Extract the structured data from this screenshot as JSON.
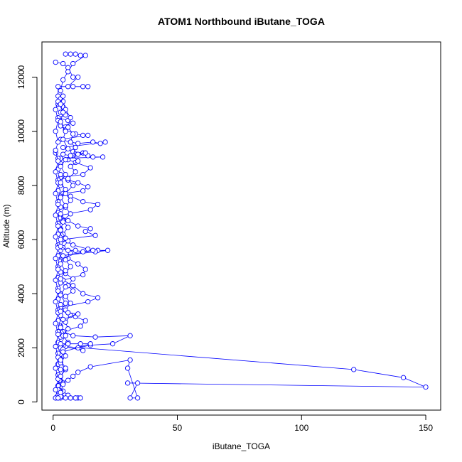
{
  "chart_data": {
    "type": "line",
    "title": "ATOM1 Northbound iButane_TOGA",
    "xlabel": "iButane_TOGA",
    "ylabel": "Altitude (m)",
    "xlim": [
      -4.5,
      156
    ],
    "ylim": [
      -300,
      13300
    ],
    "x_ticks": [
      "0",
      "50",
      "100",
      "150"
    ],
    "y_ticks": [
      "0",
      "2000",
      "4000",
      "6000",
      "8000",
      "10000",
      "12000"
    ],
    "line_color": "#0000ff",
    "marker": "open-circle",
    "grid": false,
    "series": [
      {
        "values": [
          [
            1,
            12550
          ],
          [
            4,
            12500
          ],
          [
            6,
            12350
          ],
          [
            8,
            12000
          ],
          [
            10,
            12000
          ],
          [
            6,
            11650
          ],
          [
            8,
            11650
          ],
          [
            12,
            11650
          ],
          [
            14,
            11650
          ],
          [
            2,
            11650
          ],
          [
            2,
            11300
          ],
          [
            3,
            11200
          ],
          [
            2,
            11000
          ],
          [
            4,
            10900
          ],
          [
            3,
            10700
          ],
          [
            5,
            10600
          ],
          [
            2,
            10500
          ],
          [
            6,
            10400
          ],
          [
            8,
            10300
          ],
          [
            3,
            10200
          ],
          [
            5,
            10050
          ],
          [
            9,
            9900
          ],
          [
            12,
            9850
          ],
          [
            14,
            9850
          ],
          [
            3,
            9700
          ],
          [
            7,
            9600
          ],
          [
            10,
            9550
          ],
          [
            16,
            9600
          ],
          [
            19,
            9550
          ],
          [
            21,
            9600
          ],
          [
            4,
            9400
          ],
          [
            8,
            9250
          ],
          [
            12,
            9200
          ],
          [
            14,
            9100
          ],
          [
            16,
            9050
          ],
          [
            20,
            9050
          ],
          [
            3,
            9000
          ],
          [
            6,
            8950
          ],
          [
            9,
            8850
          ],
          [
            15,
            8650
          ],
          [
            12,
            8400
          ],
          [
            3,
            8300
          ],
          [
            6,
            8200
          ],
          [
            10,
            8100
          ],
          [
            14,
            7950
          ],
          [
            12,
            7800
          ],
          [
            4,
            7700
          ],
          [
            7,
            7600
          ],
          [
            12,
            7400
          ],
          [
            18,
            7300
          ],
          [
            15,
            7100
          ],
          [
            3,
            6900
          ],
          [
            6,
            6700
          ],
          [
            10,
            6500
          ],
          [
            15,
            6400
          ],
          [
            13,
            6300
          ],
          [
            17,
            6150
          ],
          [
            4,
            6000
          ],
          [
            8,
            5800
          ],
          [
            14,
            5650
          ],
          [
            18,
            5600
          ],
          [
            22,
            5600
          ],
          [
            17,
            5550
          ],
          [
            3,
            5400
          ],
          [
            6,
            5300
          ],
          [
            10,
            5100
          ],
          [
            13,
            4900
          ],
          [
            12,
            4700
          ],
          [
            4,
            4500
          ],
          [
            8,
            4300
          ],
          [
            12,
            4000
          ],
          [
            18,
            3850
          ],
          [
            14,
            3700
          ],
          [
            3,
            3500
          ],
          [
            6,
            3300
          ],
          [
            9,
            3150
          ],
          [
            13,
            3000
          ],
          [
            11,
            2800
          ],
          [
            4,
            2600
          ],
          [
            8,
            2450
          ],
          [
            17,
            2400
          ],
          [
            31,
            2450
          ],
          [
            24,
            2150
          ],
          [
            15,
            2100
          ],
          [
            10,
            2000
          ],
          [
            12,
            1900
          ],
          [
            2,
            2100
          ],
          [
            5,
            2050
          ],
          [
            121,
            1200
          ],
          [
            141,
            900
          ],
          [
            150,
            550
          ],
          [
            30,
            700
          ],
          [
            34,
            700
          ],
          [
            31,
            150
          ],
          [
            34,
            150
          ],
          [
            30,
            1250
          ],
          [
            31,
            1550
          ],
          [
            15,
            1300
          ],
          [
            10,
            1100
          ],
          [
            8,
            950
          ],
          [
            6,
            800
          ],
          [
            3,
            750
          ],
          [
            2,
            600
          ],
          [
            4,
            400
          ],
          [
            6,
            250
          ],
          [
            9,
            150
          ],
          [
            10,
            150
          ],
          [
            7,
            150
          ],
          [
            3,
            150
          ],
          [
            2,
            150
          ],
          [
            1,
            150
          ]
        ]
      },
      {
        "values": [
          [
            1,
            9200
          ],
          [
            2,
            9000
          ],
          [
            3,
            8800
          ],
          [
            2,
            8600
          ],
          [
            3,
            8400
          ],
          [
            2,
            8200
          ],
          [
            3,
            8000
          ],
          [
            2,
            7800
          ],
          [
            3,
            7600
          ],
          [
            2,
            7400
          ],
          [
            3,
            7200
          ],
          [
            2,
            7000
          ],
          [
            3,
            6800
          ],
          [
            2,
            6600
          ],
          [
            3,
            6400
          ],
          [
            2,
            6200
          ],
          [
            3,
            6000
          ],
          [
            2,
            5800
          ],
          [
            3,
            5600
          ],
          [
            2,
            5400
          ],
          [
            3,
            5200
          ],
          [
            2,
            5000
          ],
          [
            3,
            4800
          ],
          [
            2,
            4600
          ],
          [
            3,
            4400
          ],
          [
            2,
            4200
          ],
          [
            3,
            4000
          ],
          [
            2,
            3800
          ],
          [
            3,
            3600
          ],
          [
            2,
            3400
          ],
          [
            3,
            3200
          ],
          [
            2,
            3000
          ],
          [
            3,
            2800
          ],
          [
            2,
            2600
          ],
          [
            3,
            2400
          ],
          [
            2,
            2200
          ],
          [
            3,
            2000
          ],
          [
            2,
            1800
          ],
          [
            3,
            1600
          ],
          [
            2,
            1400
          ],
          [
            3,
            1200
          ],
          [
            2,
            1000
          ],
          [
            3,
            800
          ],
          [
            2,
            600
          ],
          [
            3,
            400
          ],
          [
            2,
            250
          ],
          [
            1,
            150
          ]
        ]
      },
      {
        "values": [
          [
            5,
            12850
          ],
          [
            7,
            12850
          ],
          [
            9,
            12850
          ],
          [
            11,
            12800
          ],
          [
            13,
            12800
          ],
          [
            8,
            12500
          ],
          [
            6,
            12200
          ],
          [
            4,
            11900
          ],
          [
            3,
            11500
          ],
          [
            4,
            11100
          ],
          [
            5,
            10800
          ],
          [
            7,
            10500
          ],
          [
            6,
            10150
          ],
          [
            8,
            9900
          ],
          [
            7,
            9600
          ],
          [
            9,
            9400
          ],
          [
            8,
            9100
          ],
          [
            10,
            8900
          ],
          [
            7,
            8700
          ],
          [
            9,
            8500
          ],
          [
            6,
            8250
          ],
          [
            8,
            8000
          ],
          [
            5,
            7700
          ],
          [
            7,
            7450
          ],
          [
            5,
            7200
          ],
          [
            7,
            6950
          ],
          [
            4,
            6700
          ],
          [
            6,
            6450
          ],
          [
            4,
            6200
          ],
          [
            6,
            5950
          ],
          [
            4,
            5700
          ],
          [
            7,
            5500
          ],
          [
            5,
            5250
          ],
          [
            7,
            5000
          ],
          [
            5,
            4750
          ],
          [
            8,
            4550
          ],
          [
            6,
            4300
          ],
          [
            8,
            4100
          ],
          [
            5,
            3900
          ],
          [
            7,
            3650
          ],
          [
            5,
            3400
          ],
          [
            7,
            3200
          ],
          [
            5,
            2950
          ],
          [
            6,
            2700
          ],
          [
            4,
            2450
          ],
          [
            6,
            2200
          ],
          [
            4,
            1950
          ],
          [
            5,
            1700
          ],
          [
            3,
            1450
          ],
          [
            5,
            1200
          ],
          [
            3,
            950
          ],
          [
            4,
            700
          ],
          [
            2,
            450
          ],
          [
            3,
            200
          ]
        ]
      },
      {
        "values": [
          [
            2,
            11100
          ],
          [
            1,
            10800
          ],
          [
            2,
            10400
          ],
          [
            1,
            10000
          ],
          [
            2,
            9600
          ],
          [
            1,
            9300
          ],
          [
            2,
            8900
          ],
          [
            1,
            8500
          ],
          [
            2,
            8100
          ],
          [
            1,
            7700
          ],
          [
            2,
            7300
          ],
          [
            1,
            6900
          ],
          [
            2,
            6500
          ],
          [
            1,
            6100
          ],
          [
            2,
            5700
          ],
          [
            1,
            5300
          ],
          [
            2,
            4900
          ],
          [
            1,
            4500
          ],
          [
            2,
            4100
          ],
          [
            1,
            3700
          ],
          [
            2,
            3300
          ],
          [
            1,
            2900
          ],
          [
            2,
            2500
          ],
          [
            1,
            2050
          ],
          [
            2,
            1650
          ],
          [
            1,
            1250
          ],
          [
            2,
            850
          ],
          [
            1,
            450
          ],
          [
            2,
            150
          ]
        ]
      },
      {
        "values": [
          [
            4,
            11300
          ],
          [
            3,
            11000
          ],
          [
            4,
            10700
          ],
          [
            3,
            10350
          ],
          [
            5,
            10000
          ],
          [
            4,
            9700
          ],
          [
            6,
            9350
          ],
          [
            4,
            9150
          ],
          [
            7,
            9100
          ],
          [
            10,
            9150
          ],
          [
            13,
            9200
          ],
          [
            5,
            8950
          ],
          [
            3,
            8700
          ],
          [
            5,
            8400
          ],
          [
            3,
            8100
          ],
          [
            5,
            7850
          ],
          [
            3,
            7550
          ],
          [
            5,
            7250
          ],
          [
            3,
            6950
          ],
          [
            4,
            6650
          ],
          [
            3,
            6350
          ],
          [
            5,
            6050
          ],
          [
            3,
            5750
          ],
          [
            6,
            5600
          ],
          [
            9,
            5600
          ],
          [
            12,
            5550
          ],
          [
            16,
            5600
          ],
          [
            4,
            5400
          ],
          [
            3,
            5100
          ],
          [
            5,
            4850
          ],
          [
            3,
            4550
          ],
          [
            5,
            4250
          ],
          [
            3,
            3950
          ],
          [
            5,
            3650
          ],
          [
            3,
            3350
          ],
          [
            6,
            3300
          ],
          [
            10,
            3250
          ],
          [
            4,
            3050
          ],
          [
            3,
            2750
          ],
          [
            5,
            2450
          ],
          [
            3,
            2150
          ],
          [
            6,
            2150
          ],
          [
            11,
            2150
          ],
          [
            15,
            2150
          ],
          [
            4,
            1850
          ],
          [
            3,
            1550
          ],
          [
            5,
            1250
          ],
          [
            3,
            950
          ],
          [
            4,
            650
          ],
          [
            3,
            350
          ],
          [
            5,
            150
          ],
          [
            7,
            150
          ],
          [
            9,
            150
          ],
          [
            11,
            150
          ]
        ]
      }
    ]
  }
}
